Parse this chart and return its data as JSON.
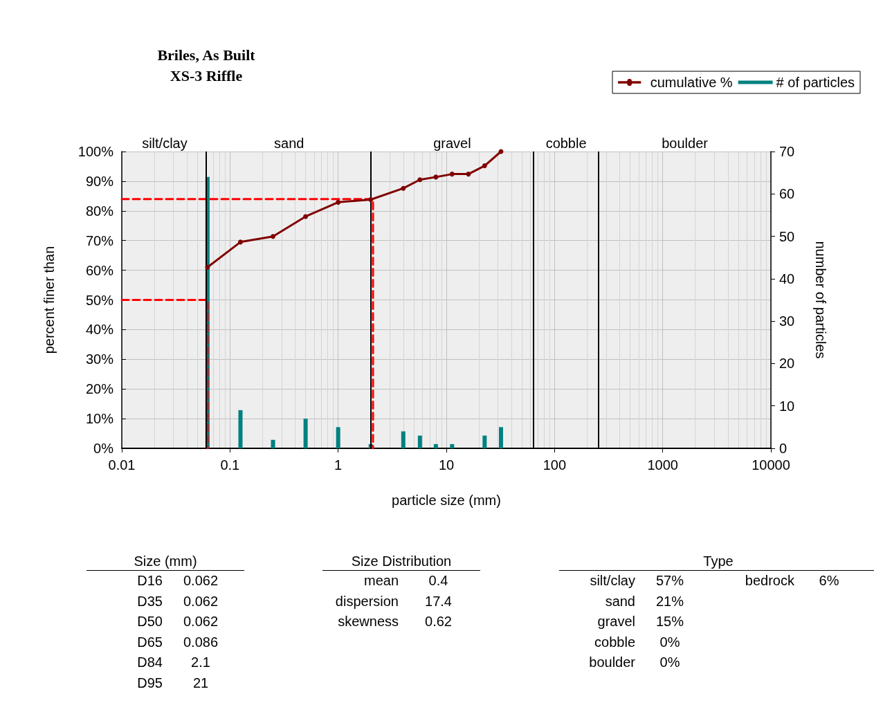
{
  "chart_data": [
    {
      "type": "line",
      "title": "Briles, As Built",
      "subtitle": "XS-3 Riffle",
      "xlabel": "particle size (mm)",
      "ylabel": "percent finer than",
      "y2label": "number of particles",
      "log": "x",
      "grid": true,
      "legend": "top right",
      "xlim": [
        0.01,
        10000
      ],
      "xticks": [
        0.01,
        0.1,
        1,
        10,
        100,
        1000,
        10000
      ],
      "ylim": [
        0,
        100
      ],
      "yticks": [
        {
          "value": 0,
          "label": "0%"
        },
        {
          "value": 10,
          "label": "10%"
        },
        {
          "value": 20,
          "label": "20%"
        },
        {
          "value": 30,
          "label": "30%"
        },
        {
          "value": 40,
          "label": "40%"
        },
        {
          "value": 50,
          "label": "50%"
        },
        {
          "value": 60,
          "label": "60%"
        },
        {
          "value": 70,
          "label": "70%"
        },
        {
          "value": 80,
          "label": "80%"
        },
        {
          "value": 90,
          "label": "90%"
        },
        {
          "value": 100,
          "label": "100%"
        }
      ],
      "y2lim": [
        0,
        70
      ],
      "y2ticks": [
        0,
        10,
        20,
        30,
        40,
        50,
        60,
        70
      ],
      "x": [
        0.062,
        0.125,
        0.25,
        0.5,
        1,
        2,
        4,
        5.7,
        8,
        11.3,
        16,
        22.6,
        32
      ],
      "series": [
        {
          "name": "cumulative %",
          "type": "line",
          "color": "#800000",
          "marker": "circle",
          "values": [
            61.0,
            69.5,
            71.4,
            78.1,
            82.9,
            83.8,
            87.6,
            90.5,
            91.4,
            92.4,
            92.4,
            95.2,
            100
          ]
        },
        {
          "name": "# of particles",
          "type": "bar",
          "axis": "y2",
          "color": "#008080",
          "values": [
            64,
            9,
            2,
            7,
            5,
            1,
            4,
            3,
            1,
            1,
            0,
            3,
            5
          ]
        },
        {
          "type": "line",
          "color": "#ff0000",
          "line_style": "dashed",
          "marker": "none",
          "x": [
            0.01,
            0.062,
            0.062
          ],
          "values": [
            50,
            50,
            0
          ]
        },
        {
          "type": "line",
          "color": "#ff0000",
          "line_style": "dashed",
          "marker": "none",
          "x": [
            0.01,
            2.1,
            2.1
          ],
          "values": [
            84,
            84,
            0
          ]
        }
      ],
      "ref_lines": [
        {
          "axis": "x",
          "value": 0.062,
          "color": "#000000"
        },
        {
          "axis": "x",
          "value": 2,
          "color": "#000000"
        },
        {
          "axis": "x",
          "value": 64,
          "color": "#000000"
        },
        {
          "axis": "x",
          "value": 256,
          "color": "#000000"
        }
      ],
      "annotations": [
        "silt/clay",
        "sand",
        "gravel",
        "cobble",
        "boulder"
      ]
    },
    {
      "type": "other",
      "title": "Size (mm)",
      "annotations": [
        "D16",
        "0.062",
        "D35",
        "0.062",
        "D50",
        "0.062",
        "D65",
        "0.086",
        "D84",
        "2.1",
        "D95",
        "21"
      ]
    },
    {
      "type": "other",
      "title": "Size Distribution",
      "annotations": [
        "mean",
        "0.4",
        "dispersion",
        "17.4",
        "skewness",
        "0.62"
      ]
    },
    {
      "type": "other",
      "title": "Type",
      "annotations": [
        "silt/clay",
        "57%",
        "sand",
        "21%",
        "gravel",
        "15%",
        "cobble",
        "0%",
        "boulder",
        "0%",
        "bedrock",
        "6%"
      ]
    }
  ]
}
